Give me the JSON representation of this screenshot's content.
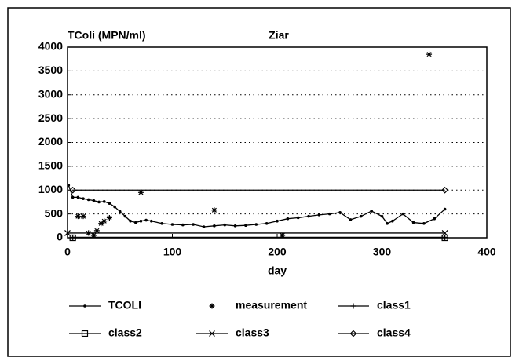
{
  "chart_data": {
    "type": "line",
    "title": "TCoIi (MPN/ml)",
    "subtitle": "Ziar",
    "x_label": "day",
    "xlim": [
      0,
      400
    ],
    "xticks": [
      0,
      100,
      200,
      300,
      400
    ],
    "ylim": [
      0,
      4000
    ],
    "yticks": [
      0,
      500,
      1000,
      1500,
      2000,
      2500,
      3000,
      3500,
      4000
    ],
    "grid": true,
    "color": "#000000",
    "series": [
      {
        "name": "TCOLI",
        "marker": "dot",
        "style": "line",
        "x": [
          1,
          5,
          10,
          15,
          20,
          25,
          30,
          35,
          40,
          45,
          50,
          55,
          60,
          65,
          70,
          75,
          80,
          90,
          100,
          110,
          120,
          130,
          140,
          150,
          160,
          170,
          180,
          190,
          200,
          210,
          220,
          230,
          240,
          250,
          260,
          270,
          280,
          290,
          300,
          305,
          310,
          320,
          330,
          340,
          350,
          360
        ],
        "values": [
          1100,
          850,
          850,
          820,
          800,
          780,
          750,
          760,
          720,
          650,
          550,
          450,
          350,
          320,
          350,
          370,
          350,
          300,
          280,
          270,
          280,
          230,
          250,
          270,
          250,
          260,
          280,
          300,
          350,
          400,
          420,
          450,
          480,
          500,
          530,
          380,
          450,
          560,
          450,
          300,
          350,
          500,
          320,
          300,
          400,
          600
        ]
      },
      {
        "name": "measurement",
        "marker": "asterisk",
        "style": "points",
        "x": [
          10,
          15,
          20,
          25,
          28,
          32,
          35,
          40,
          70,
          140,
          205,
          345
        ],
        "values": [
          450,
          450,
          100,
          50,
          150,
          300,
          350,
          420,
          950,
          580,
          50,
          3850
        ]
      },
      {
        "name": "class1",
        "marker": "plus",
        "style": "line",
        "x": [
          5,
          360
        ],
        "values": [
          10,
          10
        ]
      },
      {
        "name": "class2",
        "marker": "square",
        "style": "line",
        "x": [
          5,
          360
        ],
        "values": [
          0,
          0
        ]
      },
      {
        "name": "class3",
        "marker": "cross",
        "style": "line",
        "x": [
          0,
          360
        ],
        "values": [
          100,
          100
        ]
      },
      {
        "name": "class4",
        "marker": "diamond",
        "style": "line",
        "x": [
          5,
          360
        ],
        "values": [
          1000,
          1000
        ]
      }
    ]
  }
}
